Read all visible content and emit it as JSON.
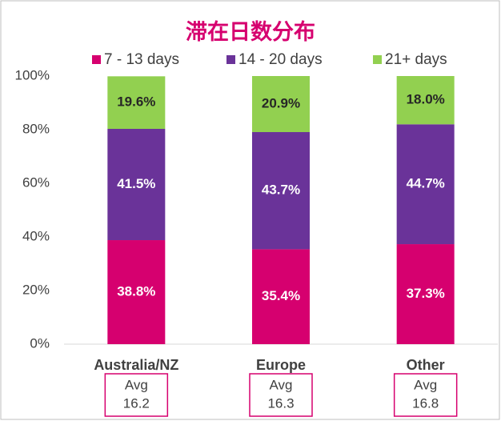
{
  "chart_data": {
    "type": "stacked_bar",
    "title": "滞在日数分布",
    "categories": [
      "Australia/NZ",
      "Europe",
      "Other"
    ],
    "series": [
      {
        "name": "7 - 13 days",
        "color": "#d6006f",
        "values": [
          38.8,
          35.4,
          37.3
        ],
        "value_labels": [
          "38.8%",
          "35.4%",
          "37.3%"
        ]
      },
      {
        "name": "14 - 20 days",
        "color": "#6a3399",
        "values": [
          41.5,
          43.7,
          44.7
        ],
        "value_labels": [
          "41.5%",
          "43.7%",
          "44.7%"
        ]
      },
      {
        "name": "21+ days",
        "color": "#92d050",
        "values": [
          19.6,
          20.9,
          18.0
        ],
        "value_labels": [
          "19.6%",
          "20.9%",
          "18.0%"
        ]
      }
    ],
    "ylim": [
      0,
      100
    ],
    "yticks": [
      {
        "value": 0,
        "label": "0%"
      },
      {
        "value": 20,
        "label": "20%"
      },
      {
        "value": 40,
        "label": "40%"
      },
      {
        "value": 60,
        "label": "60%"
      },
      {
        "value": 80,
        "label": "80%"
      },
      {
        "value": 100,
        "label": "100%"
      }
    ],
    "annotations": [
      {
        "label": "Avg",
        "value": 16.2
      },
      {
        "label": "Avg",
        "value": 16.3
      },
      {
        "label": "Avg",
        "value": 16.8
      }
    ],
    "grid": false,
    "legend": "top"
  }
}
